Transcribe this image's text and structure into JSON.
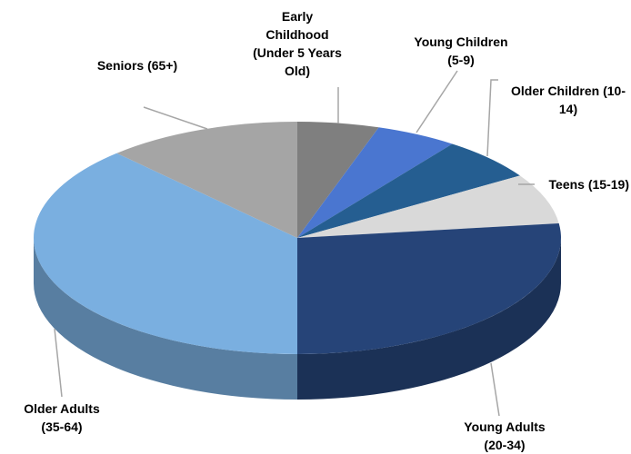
{
  "chart_data": {
    "type": "pie",
    "categories": [
      "Early Childhood (Under 5 Years Old)",
      "Young Children (5-9)",
      "Older Children (10-14)",
      "Teens (15-19)",
      "Young Adults (20-34)",
      "Older Adults (35-64)",
      "Seniors (65+)"
    ],
    "values": [
      5,
      5,
      6,
      7,
      27,
      38,
      12
    ],
    "colors": [
      "#7f7f7f",
      "#4a76d0",
      "#255e91",
      "#d9d9d9",
      "#264478",
      "#7aafe0",
      "#a5a5a5"
    ]
  }
}
